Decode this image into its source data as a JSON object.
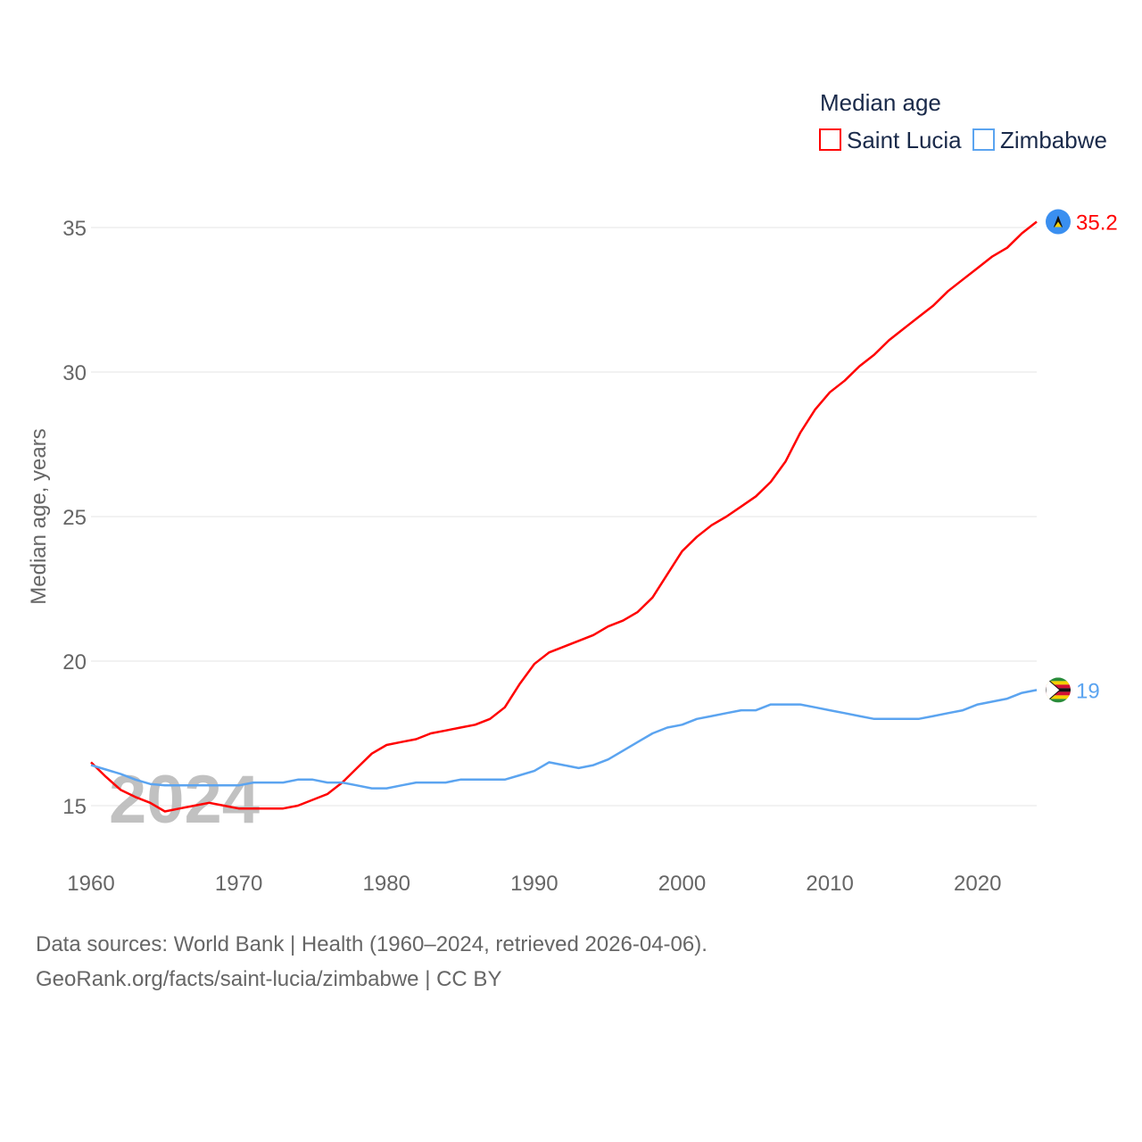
{
  "chart_data": {
    "type": "line",
    "title": "Median age",
    "ylabel": "Median age, years",
    "xlabel": "",
    "xlim": [
      1960,
      2024
    ],
    "ylim": [
      15,
      35
    ],
    "x_ticks": [
      "1960",
      "1970",
      "1980",
      "1990",
      "2000",
      "2010",
      "2020"
    ],
    "y_ticks": [
      "15",
      "20",
      "25",
      "30",
      "35"
    ],
    "watermark_year": "2024",
    "legend_position": "top-right",
    "series": [
      {
        "name": "Saint Lucia",
        "color": "#ff0000",
        "end_label": "35.2",
        "x": [
          1960,
          1961,
          1962,
          1963,
          1964,
          1965,
          1966,
          1967,
          1968,
          1969,
          1970,
          1971,
          1972,
          1973,
          1974,
          1975,
          1976,
          1977,
          1978,
          1979,
          1980,
          1981,
          1982,
          1983,
          1984,
          1985,
          1986,
          1987,
          1988,
          1989,
          1990,
          1991,
          1992,
          1993,
          1994,
          1995,
          1996,
          1997,
          1998,
          1999,
          2000,
          2001,
          2002,
          2003,
          2004,
          2005,
          2006,
          2007,
          2008,
          2009,
          2010,
          2011,
          2012,
          2013,
          2014,
          2015,
          2016,
          2017,
          2018,
          2019,
          2020,
          2021,
          2022,
          2023,
          2024
        ],
        "values": [
          16.5,
          16.0,
          15.55,
          15.3,
          15.1,
          14.8,
          14.9,
          15.0,
          15.1,
          15.0,
          14.9,
          14.9,
          14.9,
          14.9,
          15.0,
          15.2,
          15.4,
          15.8,
          16.3,
          16.8,
          17.1,
          17.2,
          17.3,
          17.5,
          17.6,
          17.7,
          17.8,
          18.0,
          18.4,
          19.2,
          19.9,
          20.3,
          20.5,
          20.7,
          20.9,
          21.2,
          21.4,
          21.7,
          22.2,
          23.0,
          23.8,
          24.3,
          24.7,
          25.0,
          25.35,
          25.7,
          26.2,
          26.9,
          27.9,
          28.7,
          29.3,
          29.7,
          30.2,
          30.6,
          31.1,
          31.5,
          31.9,
          32.3,
          32.8,
          33.2,
          33.6,
          34.0,
          34.3,
          34.8,
          35.2
        ]
      },
      {
        "name": "Zimbabwe",
        "color": "#5ba4f0",
        "end_label": "19",
        "x": [
          1960,
          1961,
          1962,
          1963,
          1964,
          1965,
          1966,
          1967,
          1968,
          1969,
          1970,
          1971,
          1972,
          1973,
          1974,
          1975,
          1976,
          1977,
          1978,
          1979,
          1980,
          1981,
          1982,
          1983,
          1984,
          1985,
          1986,
          1987,
          1988,
          1989,
          1990,
          1991,
          1992,
          1993,
          1994,
          1995,
          1996,
          1997,
          1998,
          1999,
          2000,
          2001,
          2002,
          2003,
          2004,
          2005,
          2006,
          2007,
          2008,
          2009,
          2010,
          2011,
          2012,
          2013,
          2014,
          2015,
          2016,
          2017,
          2018,
          2019,
          2020,
          2021,
          2022,
          2023,
          2024
        ],
        "values": [
          16.4,
          16.25,
          16.1,
          15.9,
          15.75,
          15.7,
          15.7,
          15.7,
          15.7,
          15.7,
          15.7,
          15.8,
          15.8,
          15.8,
          15.9,
          15.9,
          15.8,
          15.8,
          15.7,
          15.6,
          15.6,
          15.7,
          15.8,
          15.8,
          15.8,
          15.9,
          15.9,
          15.9,
          15.9,
          16.05,
          16.2,
          16.5,
          16.4,
          16.3,
          16.4,
          16.6,
          16.9,
          17.2,
          17.5,
          17.7,
          17.8,
          18.0,
          18.1,
          18.2,
          18.3,
          18.3,
          18.5,
          18.5,
          18.5,
          18.4,
          18.3,
          18.2,
          18.1,
          18.0,
          18.0,
          18.0,
          18.0,
          18.1,
          18.2,
          18.3,
          18.5,
          18.6,
          18.7,
          18.9,
          19.0
        ]
      }
    ]
  },
  "footer": {
    "line1": "Data sources: World Bank | Health (1960–2024, retrieved 2026-04-06).",
    "line2": "GeoRank.org/facts/saint-lucia/zimbabwe | CC BY"
  }
}
